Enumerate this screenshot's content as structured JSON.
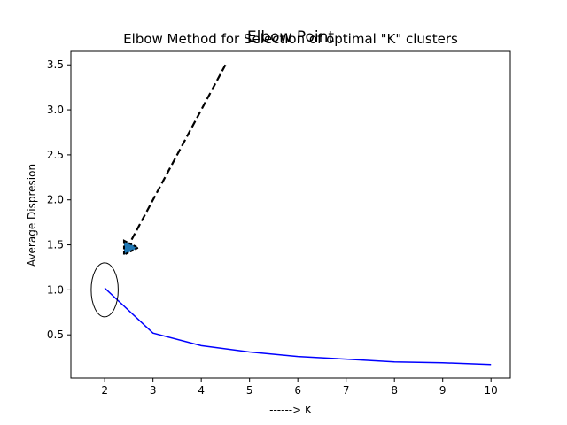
{
  "chart_data": {
    "type": "line",
    "title": "Elbow Method for Selection of optimal \"K\" clusters",
    "overlay_title": "Elbow Point",
    "xlabel": "------> K",
    "ylabel": "Average Dispresion",
    "xlim": [
      1.3,
      10.4
    ],
    "ylim": [
      0.02,
      3.65
    ],
    "grid": false,
    "x_ticks": [
      2,
      3,
      4,
      5,
      6,
      7,
      8,
      9,
      10
    ],
    "y_ticks": [
      0.5,
      1.0,
      1.5,
      2.0,
      2.5,
      3.0,
      3.5
    ],
    "x_tick_labels": [
      "2",
      "3",
      "4",
      "5",
      "6",
      "7",
      "8",
      "9",
      "10"
    ],
    "y_tick_labels": [
      "0.5",
      "1.0",
      "1.5",
      "2.0",
      "2.5",
      "3.0",
      "3.5"
    ],
    "series": [
      {
        "color": "#0000ff",
        "x": [
          2,
          3,
          4,
          5,
          6,
          7,
          8,
          9,
          10
        ],
        "y": [
          1.02,
          0.52,
          0.38,
          0.31,
          0.26,
          0.23,
          0.2,
          0.19,
          0.17
        ]
      }
    ],
    "annotations": {
      "elbow_marker": {
        "x": 2,
        "y": 1.0,
        "rx_data": 0.28,
        "ry_data": 0.3,
        "color": "#000000"
      },
      "arrow": {
        "from": {
          "x": 4.5,
          "y": 3.5
        },
        "to": {
          "x": 2.4,
          "y": 1.4
        },
        "head_fill": "#1f77b4",
        "line_color": "#000000",
        "dashed": true
      }
    }
  }
}
